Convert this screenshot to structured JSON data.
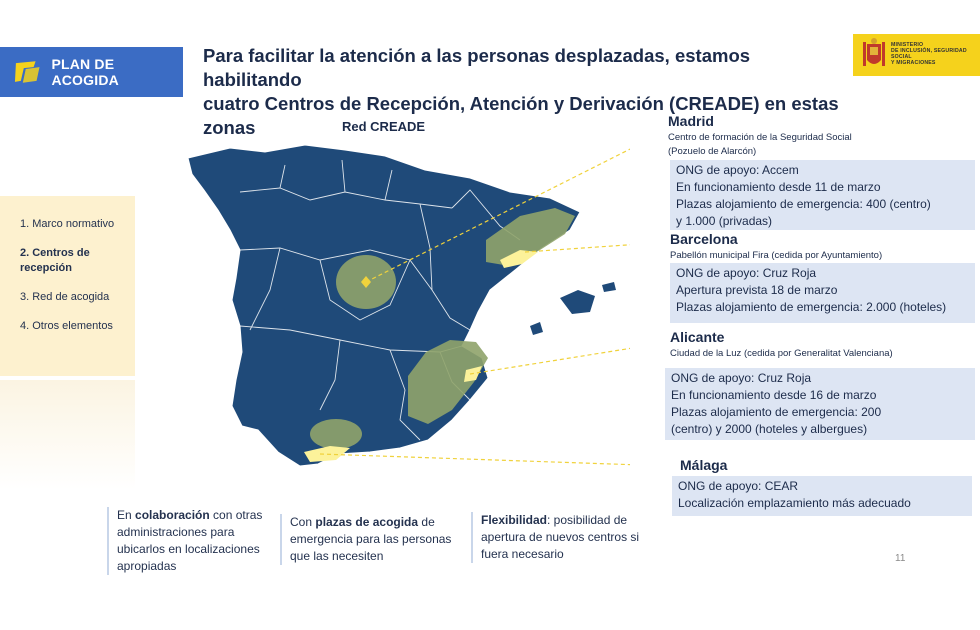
{
  "header": {
    "badge_label": "PLAN DE ACOGIDA",
    "headline_line1": "Para facilitar la atención a las personas desplazadas, estamos habilitando",
    "headline_line2": "cuatro Centros de Recepción, Atención y Derivación (CREADE) en estas zonas",
    "ministry_lines": [
      "MINISTERIO",
      "DE INCLUSIÓN, SEGURIDAD SOCIAL",
      "Y MIGRACIONES"
    ]
  },
  "menu": {
    "items": [
      {
        "label": "1. Marco normativo",
        "active": false
      },
      {
        "label": "2. Centros de recepción",
        "active": true
      },
      {
        "label": "3. Red de acogida",
        "active": false
      },
      {
        "label": "4. Otros elementos",
        "active": false
      }
    ]
  },
  "map": {
    "title": "Red CREADE",
    "land_color": "#1f4a79",
    "zone_color": "#8fa36a",
    "highlight_color": "#fcf29a"
  },
  "cities": {
    "madrid": {
      "name": "Madrid",
      "sub1": "Centro de formación de la Seguridad Social",
      "sub2": "(Pozuelo de Alarcón)",
      "lines": [
        "ONG de apoyo: Accem",
        "En funcionamiento desde 11 de marzo",
        "Plazas alojamiento de emergencia:  400 (centro)",
        "y 1.000 (privadas)"
      ]
    },
    "barcelona": {
      "name": "Barcelona",
      "sub1": "Pabellón municipal Fira (cedida por Ayuntamiento)",
      "lines": [
        "ONG de apoyo: Cruz Roja",
        "Apertura prevista 18 de marzo",
        "Plazas alojamiento de emergencia:  2.000 (hoteles)"
      ]
    },
    "alicante": {
      "name": "Alicante",
      "sub1": "Ciudad de la Luz (cedida por Generalitat Valenciana)",
      "lines": [
        "ONG de apoyo: Cruz Roja",
        "En funcionamiento desde 16 de marzo",
        "Plazas alojamiento de emergencia:  200",
        "(centro) y 2000 (hoteles y albergues)"
      ]
    },
    "malaga": {
      "name": "Málaga",
      "lines": [
        "ONG de apoyo: CEAR",
        "Localización emplazamiento más adecuado"
      ]
    }
  },
  "notes": {
    "n1_bold": "colaboración",
    "n1_pre": "En ",
    "n1_post": " con otras administraciones para ubicarlos en localizaciones apropiadas",
    "n2_pre": "Con ",
    "n2_bold": "plazas de acogida",
    "n2_post": " de emergencia para las personas que las necesiten",
    "n3_bold": "Flexibilidad",
    "n3_post": ": posibilidad de apertura de nuevos centros si fuera necesario"
  },
  "page_number": "11"
}
